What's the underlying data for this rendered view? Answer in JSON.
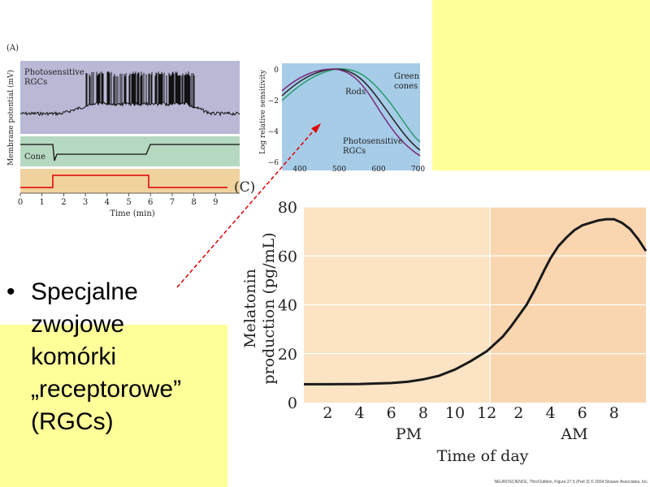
{
  "colors": {
    "yellow": "#ffff99",
    "panelA_top": "#b9b9d6",
    "panelA_mid": "#b5d8c0",
    "panelA_bot": "#f0d29e",
    "panelB_bg": "#a6cce8",
    "panelC_pm": "#fbe3c4",
    "panelC_am": "#f9d6b0",
    "arrow": "#e00000"
  },
  "panelA": {
    "label": "(A)",
    "ylabel": "Membrane potential (mV)",
    "trace1_label": [
      "Photosensitive",
      "RGCs"
    ],
    "trace2_label": "Cone",
    "xlabel": "Time (min)",
    "xticks": [
      "0",
      "1",
      "2",
      "3",
      "4",
      "5",
      "6",
      "7",
      "8",
      "9"
    ],
    "stimulus_on": [
      1.5,
      5.8
    ]
  },
  "panelB": {
    "ylabel": "Log relative sensitivity",
    "yticks": [
      "0",
      "−2",
      "−4",
      "−6"
    ],
    "xticks": [
      "400",
      "500",
      "600",
      "700"
    ],
    "labels": {
      "rods": "Rods",
      "green": [
        "Green",
        "cones"
      ],
      "prgc": [
        "Photosensitive",
        "RGCs"
      ]
    }
  },
  "panelC": {
    "label": "(C)"
  },
  "chart_data": {
    "type": "line",
    "ylabel": "Melatonin production (pg/mL)",
    "ylabel_lines": [
      "Melatonin",
      "production (pg/mL)"
    ],
    "xlabel": "Time of day",
    "period_labels": [
      "PM",
      "AM"
    ],
    "yticks": [
      "0",
      "20",
      "40",
      "60",
      "80"
    ],
    "ylim": [
      0,
      80
    ],
    "xticks": [
      "2",
      "4",
      "6",
      "8",
      "10",
      "12",
      "2",
      "4",
      "6",
      "8"
    ],
    "x_hours": [
      14,
      16,
      18,
      20,
      22,
      24,
      26,
      28,
      30,
      32
    ],
    "xlim": [
      12.5,
      34
    ],
    "series": [
      {
        "hours": [
          12.5,
          14,
          16,
          18,
          19,
          20,
          21,
          22,
          23,
          24,
          25,
          25.5,
          26,
          26.5,
          27,
          27.3,
          27.6,
          28,
          28.5,
          29,
          29.5,
          30,
          30.5,
          31,
          31.5,
          32,
          32.5,
          33,
          33.5,
          34
        ],
        "values": [
          7.5,
          7.5,
          7.6,
          8,
          8.5,
          9.5,
          11,
          13.5,
          17,
          21,
          27,
          31,
          35.5,
          40,
          46,
          50,
          54,
          59,
          64,
          67.5,
          70.5,
          72.5,
          73.5,
          74.5,
          75,
          75,
          73.5,
          71,
          67,
          62
        ]
      }
    ]
  },
  "credit": "NEUROSCIENCE, Third Edition, Figure 27.5 (Part 3) © 2004 Sinauer Associates, Inc.",
  "bullet": {
    "marker": "•",
    "lines": [
      "Specjalne",
      "zwojowe",
      "komórki",
      "„receptorowe”",
      "(RGCs)"
    ]
  }
}
